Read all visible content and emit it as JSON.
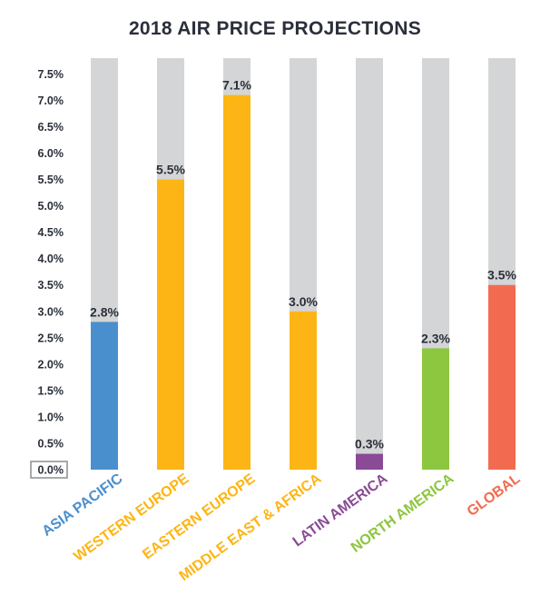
{
  "chart_data": {
    "type": "bar",
    "title": "2018 AIR PRICE PROJECTIONS",
    "categories": [
      "ASIA PACIFIC",
      "WESTERN EUROPE",
      "EASTERN EUROPE",
      "MIDDLE EAST & AFRICA",
      "LATIN AMERICA",
      "NORTH AMERICA",
      "GLOBAL"
    ],
    "values": [
      2.8,
      5.5,
      7.1,
      3.0,
      0.3,
      2.3,
      3.5
    ],
    "data_labels": [
      "2.8%",
      "5.5%",
      "7.1%",
      "3.0%",
      "0.3%",
      "2.3%",
      "3.5%"
    ],
    "colors": [
      "#4a8fcd",
      "#fdb515",
      "#fdb515",
      "#fdb515",
      "#8a4a96",
      "#8dc63f",
      "#f26b50"
    ],
    "background_bar_color": "#d4d5d6",
    "ylim": [
      0,
      7.8
    ],
    "yticks": [
      0,
      0.5,
      1.0,
      1.5,
      2.0,
      2.5,
      3.0,
      3.5,
      4.0,
      4.5,
      5.0,
      5.5,
      6.0,
      6.5,
      7.0,
      7.5
    ],
    "ytick_labels": [
      "0.0%",
      "0.5%",
      "1.0%",
      "1.5%",
      "2.0%",
      "2.5%",
      "3.0%",
      "3.5%",
      "4.0%",
      "4.5%",
      "5.0%",
      "5.5%",
      "6.0%",
      "6.5%",
      "7.0%",
      "7.5%"
    ],
    "xlabel": "",
    "ylabel": "",
    "grid": false,
    "legend": false
  }
}
